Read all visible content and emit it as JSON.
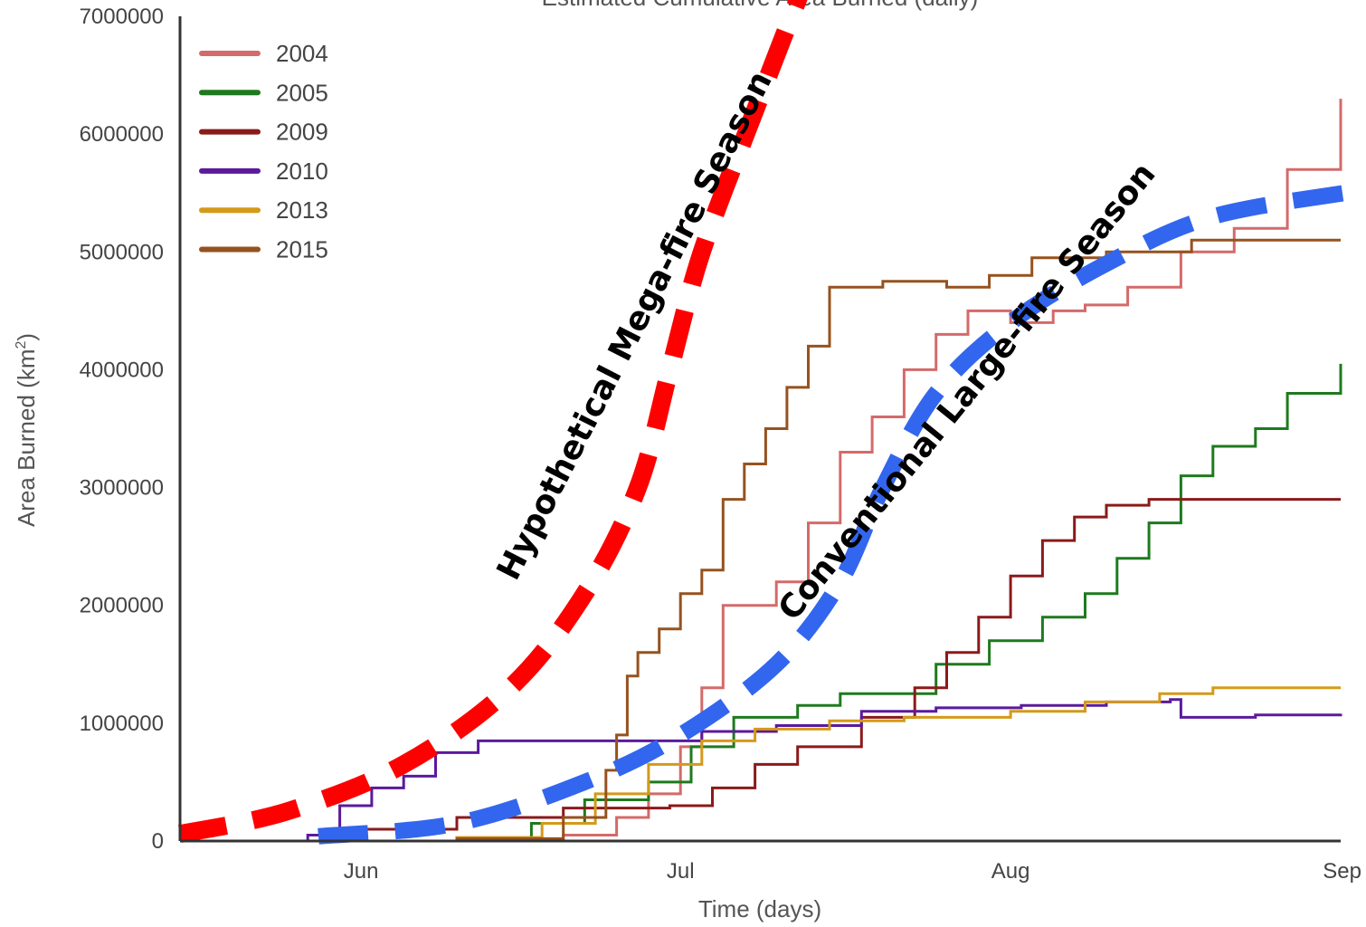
{
  "chart_data": {
    "type": "line",
    "title": "Estimated Cumulative Area Burned (daily)",
    "xlabel": "Time (days)",
    "ylabel": "Area Burned (km",
    "ylabel_sup": "2",
    "ylabel_close": ")",
    "ylim": [
      0,
      7000000
    ],
    "xlim": [
      "2015-05-15",
      "2015-09-01"
    ],
    "y_ticks": [
      0,
      1000000,
      2000000,
      3000000,
      4000000,
      5000000,
      6000000,
      7000000
    ],
    "y_tick_labels": [
      "0",
      "1000000",
      "2000000",
      "3000000",
      "4000000",
      "5000000",
      "6000000",
      "7000000"
    ],
    "x_ticks": [
      {
        "label": "Jun",
        "date": "2015-06-01"
      },
      {
        "label": "Jul",
        "date": "2015-07-01"
      },
      {
        "label": "Aug",
        "date": "2015-08-01"
      },
      {
        "label": "Sep",
        "date": "2015-09-01"
      }
    ],
    "grid": false,
    "legend_position": "top-left",
    "series": [
      {
        "name": "2004",
        "color": "#d46a6a",
        "x": [
          "2015-05-15",
          "2015-06-10",
          "2015-06-20",
          "2015-06-25",
          "2015-06-28",
          "2015-07-01",
          "2015-07-03",
          "2015-07-05",
          "2015-07-10",
          "2015-07-13",
          "2015-07-16",
          "2015-07-19",
          "2015-07-22",
          "2015-07-25",
          "2015-07-28",
          "2015-08-01",
          "2015-08-05",
          "2015-08-08",
          "2015-08-12",
          "2015-08-17",
          "2015-08-22",
          "2015-08-27",
          "2015-09-01"
        ],
        "values": [
          0,
          10000,
          50000,
          200000,
          400000,
          800000,
          1300000,
          2000000,
          2200000,
          2700000,
          3300000,
          3600000,
          4000000,
          4300000,
          4500000,
          4400000,
          4500000,
          4550000,
          4700000,
          5000000,
          5200000,
          5700000,
          6300000
        ]
      },
      {
        "name": "2005",
        "color": "#1e7a1e",
        "x": [
          "2015-05-15",
          "2015-06-10",
          "2015-06-17",
          "2015-06-22",
          "2015-06-28",
          "2015-07-02",
          "2015-07-06",
          "2015-07-12",
          "2015-07-16",
          "2015-07-20",
          "2015-07-25",
          "2015-07-30",
          "2015-08-04",
          "2015-08-08",
          "2015-08-11",
          "2015-08-14",
          "2015-08-17",
          "2015-08-20",
          "2015-08-24",
          "2015-08-27",
          "2015-09-01"
        ],
        "values": [
          0,
          20000,
          150000,
          350000,
          500000,
          800000,
          1050000,
          1150000,
          1250000,
          1250000,
          1500000,
          1700000,
          1900000,
          2100000,
          2400000,
          2700000,
          3100000,
          3350000,
          3500000,
          3800000,
          4050000
        ]
      },
      {
        "name": "2009",
        "color": "#8b1a1a",
        "x": [
          "2015-05-15",
          "2015-05-30",
          "2015-06-10",
          "2015-06-20",
          "2015-06-30",
          "2015-07-04",
          "2015-07-08",
          "2015-07-12",
          "2015-07-18",
          "2015-07-23",
          "2015-07-26",
          "2015-07-29",
          "2015-08-01",
          "2015-08-04",
          "2015-08-07",
          "2015-08-10",
          "2015-08-14",
          "2015-08-20",
          "2015-09-01"
        ],
        "values": [
          0,
          100000,
          200000,
          280000,
          300000,
          450000,
          650000,
          800000,
          1050000,
          1300000,
          1600000,
          1900000,
          2250000,
          2550000,
          2750000,
          2850000,
          2900000,
          2900000,
          2900000
        ]
      },
      {
        "name": "2010",
        "color": "#5b1a9c",
        "x": [
          "2015-05-15",
          "2015-05-27",
          "2015-05-30",
          "2015-06-02",
          "2015-06-05",
          "2015-06-08",
          "2015-06-12",
          "2015-06-26",
          "2015-07-03",
          "2015-07-10",
          "2015-07-18",
          "2015-07-25",
          "2015-08-02",
          "2015-08-10",
          "2015-08-16",
          "2015-08-17",
          "2015-08-24",
          "2015-09-01"
        ],
        "values": [
          0,
          50000,
          300000,
          450000,
          550000,
          750000,
          850000,
          850000,
          930000,
          980000,
          1100000,
          1130000,
          1150000,
          1180000,
          1200000,
          1050000,
          1070000,
          1080000
        ]
      },
      {
        "name": "2013",
        "color": "#d49a1a",
        "x": [
          "2015-05-15",
          "2015-06-10",
          "2015-06-18",
          "2015-06-23",
          "2015-06-28",
          "2015-07-03",
          "2015-07-08",
          "2015-07-15",
          "2015-07-22",
          "2015-08-01",
          "2015-08-08",
          "2015-08-15",
          "2015-08-20",
          "2015-09-01"
        ],
        "values": [
          0,
          30000,
          150000,
          400000,
          650000,
          850000,
          950000,
          1020000,
          1050000,
          1100000,
          1180000,
          1250000,
          1300000,
          1300000
        ]
      },
      {
        "name": "2015",
        "color": "#96521e",
        "x": [
          "2015-05-15",
          "2015-06-10",
          "2015-06-20",
          "2015-06-24",
          "2015-06-25",
          "2015-06-26",
          "2015-06-27",
          "2015-06-29",
          "2015-07-01",
          "2015-07-03",
          "2015-07-05",
          "2015-07-07",
          "2015-07-09",
          "2015-07-11",
          "2015-07-13",
          "2015-07-15",
          "2015-07-20",
          "2015-07-26",
          "2015-07-30",
          "2015-08-03",
          "2015-08-10",
          "2015-08-18"
        ],
        "values": [
          0,
          20000,
          200000,
          600000,
          900000,
          1400000,
          1600000,
          1800000,
          2100000,
          2300000,
          2900000,
          3200000,
          3500000,
          3850000,
          4200000,
          4700000,
          4750000,
          4700000,
          4800000,
          4950000,
          5000000,
          5100000
        ]
      }
    ],
    "annotations": [
      {
        "text": "Hypothetical Mega-fire Season",
        "color": "#ff0000",
        "x": [
          "2015-05-15",
          "2015-05-25",
          "2015-06-05",
          "2015-06-15",
          "2015-06-22",
          "2015-06-27",
          "2015-06-30",
          "2015-07-03",
          "2015-07-08",
          "2015-07-13"
        ],
        "values": [
          60000,
          250000,
          650000,
          1300000,
          2100000,
          3000000,
          4000000,
          5000000,
          6200000,
          7000000
        ]
      },
      {
        "text": "Conventional Large-fire Season",
        "color": "#3366ee",
        "x": [
          "2015-05-28",
          "2015-06-10",
          "2015-06-22",
          "2015-07-01",
          "2015-07-10",
          "2015-07-16",
          "2015-07-20",
          "2015-07-25",
          "2015-08-01",
          "2015-08-10",
          "2015-08-20",
          "2015-09-01"
        ],
        "values": [
          40000,
          150000,
          500000,
          900000,
          1500000,
          2200000,
          3000000,
          3800000,
          4400000,
          4900000,
          5300000,
          5530000
        ]
      }
    ]
  }
}
